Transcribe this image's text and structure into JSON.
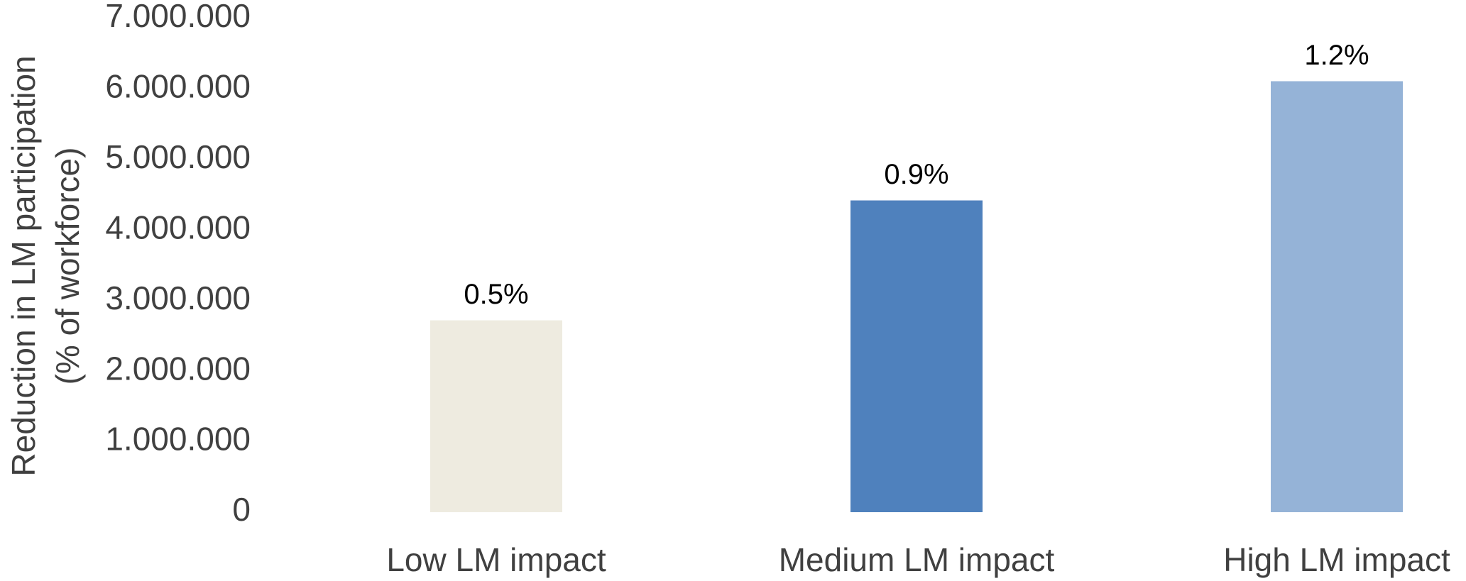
{
  "chart_data": {
    "type": "bar",
    "y_label": [
      "Reduction in LM participation",
      "(% of workforce)"
    ],
    "categories": [
      "Low LM impact",
      "Medium LM impact",
      "High LM impact"
    ],
    "values": [
      2720000,
      4420000,
      6110000
    ],
    "annotations": [
      "0.5%",
      "0.9%",
      "1.2%"
    ],
    "colors": [
      "#eeebe0",
      "#4f81bd",
      "#95b3d7"
    ],
    "ylim": [
      0,
      7000000
    ],
    "yticks": [
      0,
      {
        "value": 1000000,
        "label": "1.000.000"
      },
      {
        "value": 2000000,
        "label": "2.000.000"
      },
      {
        "value": 3000000,
        "label": "3.000.000"
      },
      {
        "value": 4000000,
        "label": "4.000.000"
      },
      {
        "value": 5000000,
        "label": "5.000.000"
      },
      {
        "value": 6000000,
        "label": "6.000.000"
      },
      {
        "value": 7000000,
        "label": "7.000.000"
      }
    ],
    "grid": false
  }
}
